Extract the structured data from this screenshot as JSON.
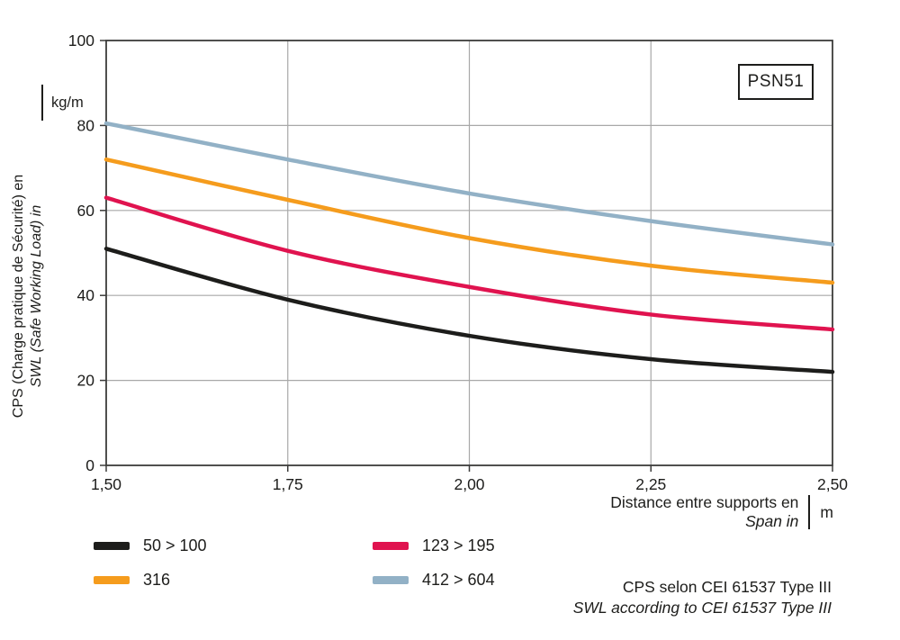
{
  "badge": {
    "label": "PSN51"
  },
  "y_axis": {
    "label_fr": "CPS (Charge pratique de Sécurité) en",
    "label_en": "SWL (Safe Working Load) in",
    "unit": "kg/m"
  },
  "x_axis": {
    "label_fr": "Distance entre supports en",
    "label_en": "Span in",
    "unit": "m"
  },
  "legend": [
    {
      "label": "50 > 100",
      "color": "#1d1d1b"
    },
    {
      "label": "123 > 195",
      "color": "#e0134f"
    },
    {
      "label": "316",
      "color": "#f59c1d"
    },
    {
      "label": "412 > 604",
      "color": "#92b1c6"
    }
  ],
  "footnote": {
    "line1": "CPS selon CEI 61537 Type III",
    "line2": "SWL according to CEI 61537 Type III"
  },
  "chart_data": {
    "type": "line",
    "title": "PSN51 safe working load vs span",
    "x": [
      1.5,
      1.75,
      2.0,
      2.25,
      2.5
    ],
    "series": [
      {
        "name": "50 > 100",
        "color": "#1d1d1b",
        "values": [
          51.0,
          39.0,
          30.5,
          25.0,
          22.0
        ]
      },
      {
        "name": "316",
        "color": "#f59c1d",
        "values": [
          72.0,
          62.5,
          53.5,
          47.0,
          43.0
        ]
      },
      {
        "name": "123 > 195",
        "color": "#e0134f",
        "values": [
          63.0,
          50.5,
          42.0,
          35.5,
          32.0
        ]
      },
      {
        "name": "412 > 604",
        "color": "#92b1c6",
        "values": [
          80.5,
          72.0,
          64.0,
          57.5,
          52.0
        ]
      }
    ],
    "xlabel": "Distance entre supports en / Span in (m)",
    "ylabel": "CPS / SWL (kg/m)",
    "xlim": [
      1.5,
      2.5
    ],
    "ylim": [
      0,
      100
    ],
    "x_ticks": [
      "1,50",
      "1,75",
      "2,00",
      "2,25",
      "2,50"
    ],
    "x_tick_values": [
      1.5,
      1.75,
      2.0,
      2.25,
      2.5
    ],
    "y_ticks": [
      "0",
      "20",
      "40",
      "60",
      "80",
      "100"
    ],
    "y_tick_values": [
      0,
      20,
      40,
      60,
      80,
      100
    ],
    "grid": true,
    "legend_position": "bottom-left",
    "style": {
      "grid_color": "#a8a8a8",
      "border_color": "#3c3c3b",
      "tick_label_color": "#1d1d1b",
      "line_width": 4.5
    }
  }
}
